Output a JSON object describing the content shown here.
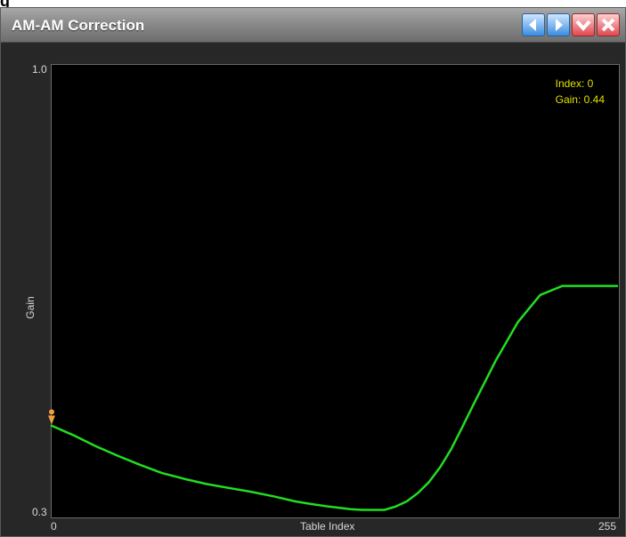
{
  "fragment_label": "g",
  "window": {
    "title": "AM-AM Correction",
    "buttons": [
      "prev-icon",
      "next-icon",
      "check-icon",
      "close-icon"
    ]
  },
  "readout": {
    "index_label": "Index: 0",
    "gain_label": "Gain: 0.44"
  },
  "colors": {
    "curve": "#22dd22",
    "marker": "#f0a040",
    "readout": "#e0e000",
    "plot_bg": "#000000"
  },
  "chart_data": {
    "type": "line",
    "title": "",
    "xlabel": "Table Index",
    "ylabel": "Gain",
    "xlim": [
      0,
      255
    ],
    "ylim": [
      0.3,
      1.0
    ],
    "x_tick_labels": [
      "0",
      "255"
    ],
    "y_tick_labels": [
      "1.0",
      "0.3"
    ],
    "grid": false,
    "series": [
      {
        "x": [
          0,
          10,
          20,
          30,
          40,
          50,
          60,
          70,
          80,
          90,
          100,
          110,
          117,
          125,
          130,
          135,
          140,
          145,
          150,
          155,
          160,
          165,
          170,
          175,
          180,
          185,
          190,
          200,
          210,
          220,
          230,
          240,
          255
        ],
        "y": [
          0.44,
          0.425,
          0.408,
          0.393,
          0.379,
          0.366,
          0.357,
          0.349,
          0.343,
          0.337,
          0.33,
          0.322,
          0.318,
          0.314,
          0.312,
          0.31,
          0.309,
          0.309,
          0.309,
          0.314,
          0.322,
          0.335,
          0.352,
          0.375,
          0.403,
          0.437,
          0.472,
          0.54,
          0.6,
          0.642,
          0.656,
          0.656,
          0.656
        ]
      }
    ],
    "marker": {
      "x": 0,
      "y": 0.44
    }
  }
}
